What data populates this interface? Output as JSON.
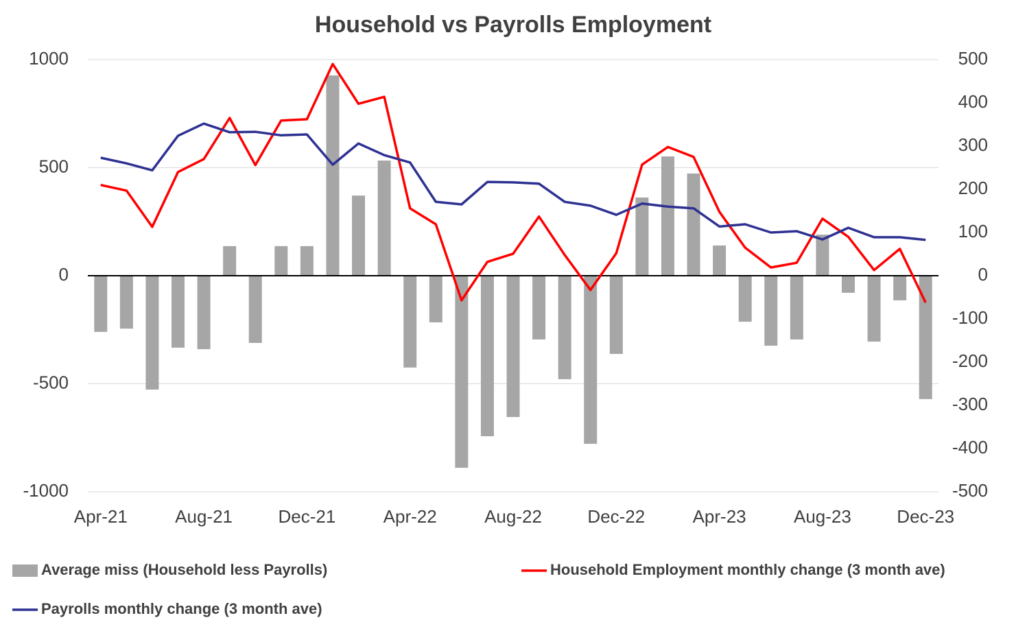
{
  "chart_data": {
    "type": "bar-line",
    "title": "Household vs Payrolls Employment",
    "categories": [
      "Apr-21",
      null,
      null,
      null,
      "Aug-21",
      null,
      null,
      null,
      "Dec-21",
      null,
      null,
      null,
      "Apr-22",
      null,
      null,
      null,
      "Aug-22",
      null,
      null,
      null,
      "Dec-22",
      null,
      null,
      null,
      "Apr-23",
      null,
      null,
      null,
      "Aug-23",
      null,
      null,
      null,
      "Dec-23"
    ],
    "series": [
      {
        "name": "Average miss (Household less Payrolls)",
        "type": "bar",
        "color": "#a6a6a6",
        "axis": "y",
        "values": [
          -260,
          -245,
          -527,
          -333,
          -340,
          137,
          -311,
          137,
          137,
          927,
          371,
          533,
          -425,
          -216,
          -889,
          -743,
          -654,
          -295,
          -479,
          -778,
          -362,
          362,
          552,
          473,
          140,
          -213,
          -324,
          -295,
          190,
          -79,
          -305,
          -114,
          -571
        ]
      },
      {
        "name": "Household Employment monthly change (3 month ave)",
        "type": "line",
        "color": "#ff0000",
        "axis": "y2",
        "values": [
          210,
          197,
          113,
          240,
          270,
          365,
          256,
          359,
          362,
          490,
          398,
          414,
          156,
          119,
          -57,
          32,
          51,
          137,
          48,
          -33,
          52,
          257,
          298,
          275,
          148,
          65,
          19,
          30,
          132,
          90,
          13,
          62,
          -62
        ]
      },
      {
        "name": "Payrolls monthly change (3 month ave)",
        "type": "line",
        "color": "#2e3192",
        "axis": "y2",
        "values": [
          273,
          260,
          244,
          324,
          352,
          332,
          333,
          325,
          327,
          257,
          306,
          279,
          262,
          171,
          165,
          217,
          216,
          213,
          171,
          162,
          141,
          167,
          160,
          156,
          114,
          119,
          100,
          103,
          84,
          111,
          89,
          89,
          83
        ]
      }
    ],
    "ylim": [
      -1000,
      1000
    ],
    "yticks": [
      -1000,
      -500,
      0,
      500,
      1000
    ],
    "y2lim": [
      -500,
      500
    ],
    "y2ticks": [
      -500,
      -400,
      -300,
      -200,
      -100,
      0,
      100,
      200,
      300,
      400,
      500
    ],
    "grid": true,
    "legend": "bottom"
  }
}
